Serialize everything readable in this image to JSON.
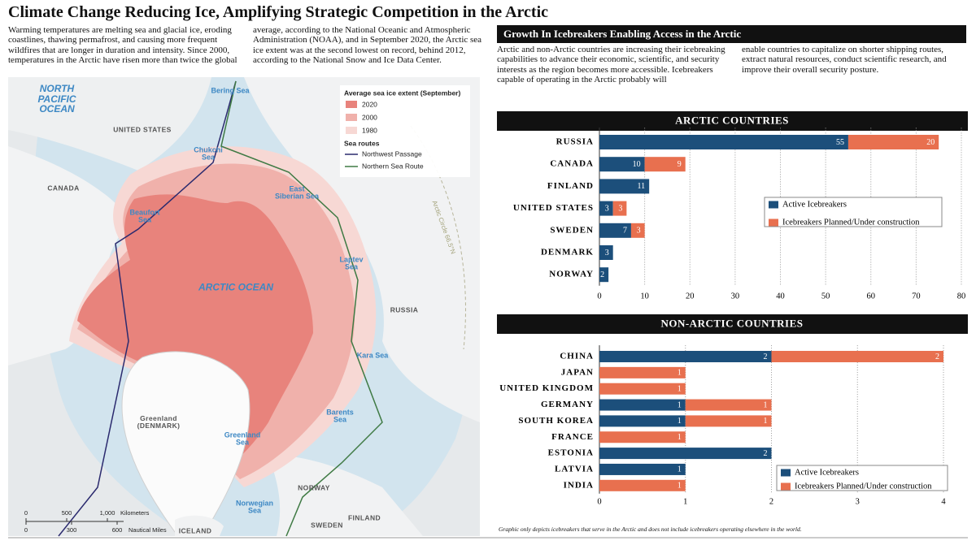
{
  "title": "Climate Change Reducing Ice, Amplifying Strategic Competition in the Arctic",
  "intro": [
    "Warming temperatures are melting sea and glacial ice, eroding coastlines, thawing permafrost, and causing more frequent wildfires that are longer in duration and intensity. Since 2000, temperatures in the Arctic have risen more than twice the global",
    "average, according to the National Oceanic and Atmospheric Administration (NOAA), and in September 2020, the Arctic sea ice extent was at the second lowest on record, behind 2012, according to the National Snow and Ice Data Center."
  ],
  "section": {
    "title": "Growth In Icebreakers Enabling Access in the Arctic",
    "text": [
      "Arctic and non-Arctic countries are increasing their icebreaking capabilities to advance their economic, scientific, and security interests as the region becomes more accessible. Icebreakers capable of operating in the Arctic probably will",
      "enable countries to capitalize on shorter shipping routes, extract natural resources, conduct scientific research, and improve their overall security posture."
    ]
  },
  "map": {
    "labels": [
      "NORTH PACIFIC OCEAN",
      "Bering Sea",
      "UNITED STATES",
      "Chukchi Sea",
      "CANADA",
      "Beaufort Sea",
      "East Siberian Sea",
      "ARCTIC OCEAN",
      "Laptev Sea",
      "RUSSIA",
      "Kara Sea",
      "Greenland (DENMARK)",
      "Greenland Sea",
      "Barents Sea",
      "Norwegian Sea",
      "NORWAY",
      "FINLAND",
      "SWEDEN",
      "ICELAND",
      "Arctic Circle 66.5°N"
    ],
    "legend": {
      "title": "Average sea ice extent (September)",
      "years": [
        "2020",
        "2000",
        "1980"
      ],
      "routes_title": "Sea routes",
      "routes": [
        "Northwest Passage",
        "Northern Sea Route"
      ]
    },
    "scale": {
      "km": [
        "0",
        "500",
        "1,000",
        "Kilometers"
      ],
      "nm": [
        "0",
        "300",
        "600",
        "Nautical Miles"
      ]
    }
  },
  "chart_data": [
    {
      "type": "bar",
      "orientation": "horizontal",
      "stacked": true,
      "title": "ARCTIC COUNTRIES",
      "categories": [
        "RUSSIA",
        "CANADA",
        "FINLAND",
        "UNITED STATES",
        "SWEDEN",
        "DENMARK",
        "NORWAY"
      ],
      "series": [
        {
          "name": "Active Icebreakers",
          "color": "#1c4f7b",
          "values": [
            55,
            10,
            11,
            3,
            7,
            3,
            2
          ]
        },
        {
          "name": "Icebreakers Planned/Under construction",
          "color": "#e8704f",
          "values": [
            20,
            9,
            null,
            3,
            3,
            null,
            null
          ]
        }
      ],
      "xlim": [
        0,
        80
      ],
      "xticks": [
        0,
        10,
        20,
        30,
        40,
        50,
        60,
        70,
        80
      ],
      "grid": true,
      "legend": "center right"
    },
    {
      "type": "bar",
      "orientation": "horizontal",
      "stacked": true,
      "title": "NON-ARCTIC COUNTRIES",
      "categories": [
        "CHINA",
        "JAPAN",
        "UNITED KINGDOM",
        "GERMANY",
        "SOUTH KOREA",
        "FRANCE",
        "ESTONIA",
        "LATVIA",
        "INDIA"
      ],
      "series": [
        {
          "name": "Active Icebreakers",
          "color": "#1c4f7b",
          "values": [
            2,
            null,
            null,
            1,
            1,
            null,
            2,
            1,
            null
          ]
        },
        {
          "name": "Icebreakers Planned/Under construction",
          "color": "#e8704f",
          "values": [
            2,
            1,
            1,
            1,
            1,
            1,
            null,
            null,
            1
          ]
        }
      ],
      "xlim": [
        0,
        4
      ],
      "xticks": [
        0,
        1,
        2,
        3,
        4
      ],
      "grid": true,
      "legend": "lower right"
    }
  ],
  "footnote": "Graphic only depicts icebreakers that serve in the Arctic and does not include icebreakers operating elsewhere in the world."
}
